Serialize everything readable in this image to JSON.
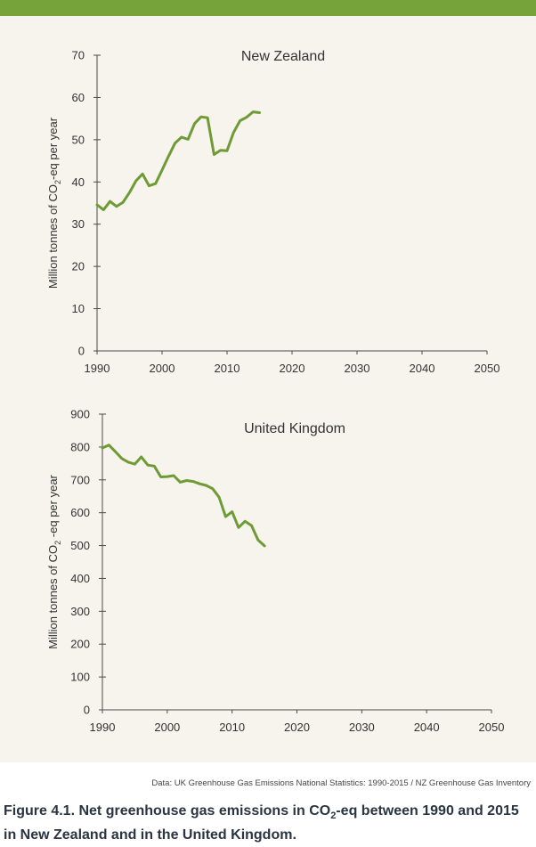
{
  "source_note": "Data: UK Greenhouse Gas Emissions National Statistics: 1990-2015 / NZ Greenhouse Gas Inventory",
  "caption": {
    "lead": "Figure 4.1.  Net greenhouse gas emissions in CO",
    "sub": "2",
    "tail": "-eq between 1990 and 2015 in New Zealand and in the United Kingdom."
  },
  "colors": {
    "line": "#6e9b35",
    "topbar": "#76a43a",
    "panel": "#f6f4ec",
    "axis": "#4a4a4a",
    "caption": "#2a3541"
  },
  "chart_data": [
    {
      "type": "line",
      "title": "New Zealand",
      "ylabel_pre": "Million tonnes of CO",
      "ylabel_sub": "2",
      "ylabel_post": "-eq per year",
      "xlabel": "",
      "xlim": [
        1990,
        2050
      ],
      "ylim": [
        0,
        70
      ],
      "xticks": [
        1990,
        2000,
        2010,
        2020,
        2030,
        2040,
        2050
      ],
      "yticks": [
        0,
        10,
        20,
        30,
        40,
        50,
        60,
        70
      ],
      "grid": false,
      "series": [
        {
          "x": [
            1990,
            1991,
            1992,
            1993,
            1994,
            1995,
            1996,
            1997,
            1998,
            1999,
            2000,
            2001,
            2002,
            2003,
            2004,
            2005,
            2006,
            2007,
            2008,
            2009,
            2010,
            2011,
            2012,
            2013,
            2014,
            2015
          ],
          "values": [
            34.6,
            33.4,
            35.4,
            34.2,
            35.2,
            37.5,
            40.3,
            41.9,
            39.1,
            39.6,
            42.8,
            46.1,
            49.2,
            50.6,
            50.1,
            53.8,
            55.4,
            55.2,
            46.5,
            47.5,
            47.4,
            51.7,
            54.5,
            55.3,
            56.6,
            56.4
          ]
        }
      ]
    },
    {
      "type": "line",
      "title": "United Kingdom",
      "ylabel_pre": "Million tonnes of CO",
      "ylabel_sub": "2",
      "ylabel_post": " -eq per year",
      "xlabel": "",
      "xlim": [
        1990,
        2050
      ],
      "ylim": [
        0,
        900
      ],
      "xticks": [
        1990,
        2000,
        2010,
        2020,
        2030,
        2040,
        2050
      ],
      "yticks": [
        0,
        100,
        200,
        300,
        400,
        500,
        600,
        700,
        800,
        900
      ],
      "grid": false,
      "series": [
        {
          "x": [
            1990,
            1991,
            1992,
            1993,
            1994,
            1995,
            1996,
            1997,
            1998,
            1999,
            2000,
            2001,
            2002,
            2003,
            2004,
            2005,
            2006,
            2007,
            2008,
            2009,
            2010,
            2011,
            2012,
            2013,
            2014,
            2015
          ],
          "values": [
            797,
            806,
            786,
            765,
            754,
            748,
            770,
            745,
            742,
            709,
            710,
            713,
            693,
            698,
            695,
            688,
            683,
            673,
            647,
            588,
            603,
            555,
            574,
            561,
            517,
            499
          ]
        }
      ]
    }
  ]
}
